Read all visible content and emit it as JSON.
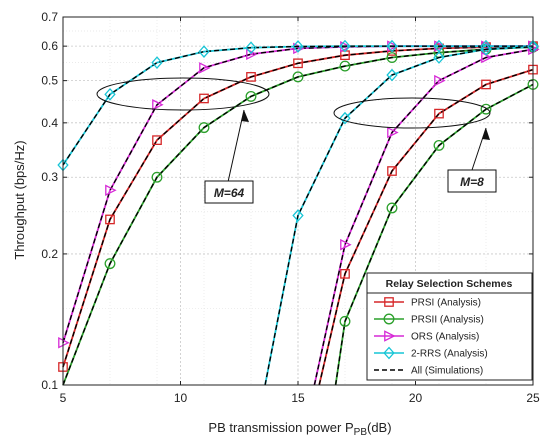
{
  "chart_data": {
    "type": "line",
    "title": "",
    "xlabel": "PB transmission power P",
    "xlabel_sub": "PB",
    "xlabel_unit": "(dB)",
    "ylabel": "Throughput (bps/Hz)",
    "xlim": [
      5,
      25
    ],
    "ylim": [
      0.1,
      0.7
    ],
    "yscale": "log",
    "grid": true,
    "legend_placement": "bottom-right",
    "xticks": [
      "5",
      "10",
      "15",
      "20",
      "25"
    ],
    "yticks": [
      {
        "v": 0.1,
        "label": "0.1"
      },
      {
        "v": 0.2,
        "label": "0.2"
      },
      {
        "v": 0.3,
        "label": "0.3"
      },
      {
        "v": 0.4,
        "label": "0.4"
      },
      {
        "v": 0.5,
        "label": "0.5"
      },
      {
        "v": 0.6,
        "label": "0.6"
      },
      {
        "v": 0.7,
        "label": "0.7"
      }
    ],
    "legend": {
      "title": "Relay Selection Schemes",
      "entries": [
        {
          "label": "PRSI (Analysis)",
          "color": "#d62728",
          "marker": "square"
        },
        {
          "label": "PRSII (Analysis)",
          "color": "#2ca02c",
          "marker": "circle"
        },
        {
          "label": "ORS (Analysis)",
          "color": "#d62ad6",
          "marker": "triangle-right"
        },
        {
          "label": "2-RRS (Analysis)",
          "color": "#17c5d6",
          "marker": "diamond"
        },
        {
          "label": "All (Simulations)",
          "color": "#000000",
          "marker": "dashed"
        }
      ]
    },
    "annotations": [
      {
        "label": "M=64"
      },
      {
        "label": "M=8"
      }
    ],
    "series": [
      {
        "group": "M=64",
        "scheme": "PRSI",
        "color": "#d62728",
        "marker": "square",
        "x": [
          5,
          7,
          9,
          11,
          13,
          15,
          17,
          19,
          21,
          23,
          25
        ],
        "y": [
          0.11,
          0.24,
          0.365,
          0.455,
          0.51,
          0.548,
          0.572,
          0.585,
          0.593,
          0.597,
          0.6
        ]
      },
      {
        "group": "M=64",
        "scheme": "PRSII",
        "color": "#2ca02c",
        "marker": "circle",
        "x": [
          5,
          7,
          9,
          11,
          13,
          15,
          17,
          19,
          21,
          23,
          25
        ],
        "y": [
          0.085,
          0.19,
          0.3,
          0.39,
          0.46,
          0.51,
          0.54,
          0.565,
          0.58,
          0.59,
          0.597
        ]
      },
      {
        "group": "M=64",
        "scheme": "ORS",
        "color": "#d62ad6",
        "marker": "triangle-right",
        "x": [
          5,
          7,
          9,
          11,
          13,
          15,
          17,
          19,
          21,
          23,
          25
        ],
        "y": [
          0.125,
          0.28,
          0.44,
          0.535,
          0.575,
          0.593,
          0.598,
          0.6,
          0.6,
          0.6,
          0.6
        ]
      },
      {
        "group": "M=64",
        "scheme": "2-RRS",
        "color": "#17c5d6",
        "marker": "diamond",
        "x": [
          5,
          7,
          9,
          11,
          13,
          15,
          17,
          19,
          21,
          23,
          25
        ],
        "y": [
          0.32,
          0.465,
          0.55,
          0.583,
          0.595,
          0.599,
          0.6,
          0.6,
          0.6,
          0.6,
          0.6
        ]
      },
      {
        "group": "M=8",
        "scheme": "PRSI",
        "color": "#d62728",
        "marker": "square",
        "x": [
          15.9,
          17,
          19,
          21,
          23,
          25
        ],
        "y": [
          0.1,
          0.18,
          0.31,
          0.42,
          0.49,
          0.53
        ]
      },
      {
        "group": "M=8",
        "scheme": "PRSII",
        "color": "#2ca02c",
        "marker": "circle",
        "x": [
          16.6,
          17,
          19,
          21,
          23,
          25
        ],
        "y": [
          0.1,
          0.14,
          0.255,
          0.355,
          0.43,
          0.49
        ]
      },
      {
        "group": "M=8",
        "scheme": "ORS",
        "color": "#d62ad6",
        "marker": "triangle-right",
        "x": [
          15.7,
          17,
          19,
          21,
          23,
          25
        ],
        "y": [
          0.1,
          0.21,
          0.38,
          0.5,
          0.565,
          0.59
        ]
      },
      {
        "group": "M=8",
        "scheme": "2-RRS",
        "color": "#17c5d6",
        "marker": "diamond",
        "x": [
          13.6,
          15,
          17,
          19,
          21,
          23,
          25
        ],
        "y": [
          0.1,
          0.245,
          0.41,
          0.515,
          0.565,
          0.59,
          0.598
        ]
      }
    ]
  }
}
